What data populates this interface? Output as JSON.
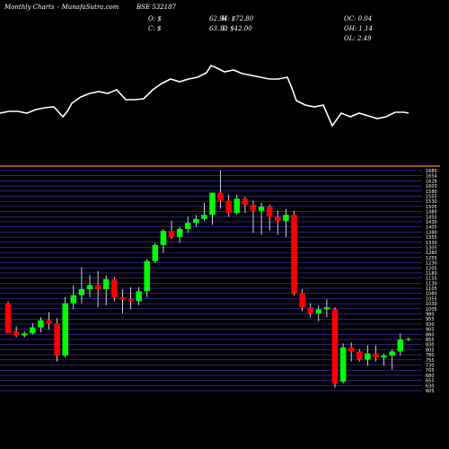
{
  "header": {
    "brand": "Monthly Charts",
    "site": "- MunafaSutra.com",
    "symbol": "BSE 532187",
    "o_label": "O: $",
    "c_label": "C: $",
    "o_value": "62.94",
    "c_value": "63.10",
    "h_label": "H: $72.80",
    "l_label": "L: $42.00",
    "oc": "OC: 0.04",
    "oh": "OH: 1.14",
    "ol": "OL: 2.49"
  },
  "colors": {
    "background": "#000000",
    "up": "#00ff00",
    "down": "#ff0000",
    "separator": "#ff8c00",
    "grid": "#4b4bff",
    "price_line": "#ffffff"
  },
  "chart_data": {
    "type": "candlestick",
    "y_tick_labels": [
      "1680",
      "1654",
      "1628",
      "1603",
      "1580",
      "1555",
      "1530",
      "1505",
      "1480",
      "1455",
      "1430",
      "1405",
      "1380",
      "1355",
      "1330",
      "1305",
      "1280",
      "1255",
      "1230",
      "1205",
      "1180",
      "1155",
      "1130",
      "1105",
      "1080",
      "1055",
      "1030",
      "1005",
      "980",
      "955",
      "930",
      "905",
      "880",
      "855",
      "830",
      "805",
      "780",
      "755",
      "730",
      "705",
      "680",
      "655",
      "630",
      "605"
    ],
    "ylim": [
      595,
      1690
    ],
    "candles": [
      {
        "o": 1030,
        "h": 1040,
        "l": 890,
        "c": 880
      },
      {
        "o": 890,
        "h": 915,
        "l": 860,
        "c": 870
      },
      {
        "o": 870,
        "h": 890,
        "l": 860,
        "c": 880
      },
      {
        "o": 880,
        "h": 930,
        "l": 875,
        "c": 910
      },
      {
        "o": 910,
        "h": 960,
        "l": 885,
        "c": 945
      },
      {
        "o": 945,
        "h": 985,
        "l": 900,
        "c": 930
      },
      {
        "o": 930,
        "h": 955,
        "l": 740,
        "c": 770
      },
      {
        "o": 770,
        "h": 1060,
        "l": 760,
        "c": 1030
      },
      {
        "o": 1030,
        "h": 1120,
        "l": 1000,
        "c": 1070
      },
      {
        "o": 1070,
        "h": 1210,
        "l": 1030,
        "c": 1100
      },
      {
        "o": 1100,
        "h": 1170,
        "l": 1060,
        "c": 1120
      },
      {
        "o": 1120,
        "h": 1190,
        "l": 1010,
        "c": 1100
      },
      {
        "o": 1100,
        "h": 1170,
        "l": 1020,
        "c": 1150
      },
      {
        "o": 1150,
        "h": 1160,
        "l": 1040,
        "c": 1060
      },
      {
        "o": 1060,
        "h": 1100,
        "l": 980,
        "c": 1050
      },
      {
        "o": 1050,
        "h": 1110,
        "l": 1000,
        "c": 1040
      },
      {
        "o": 1040,
        "h": 1110,
        "l": 1020,
        "c": 1090
      },
      {
        "o": 1090,
        "h": 1250,
        "l": 1060,
        "c": 1240
      },
      {
        "o": 1240,
        "h": 1330,
        "l": 1230,
        "c": 1320
      },
      {
        "o": 1320,
        "h": 1400,
        "l": 1280,
        "c": 1390
      },
      {
        "o": 1390,
        "h": 1440,
        "l": 1350,
        "c": 1360
      },
      {
        "o": 1360,
        "h": 1410,
        "l": 1330,
        "c": 1400
      },
      {
        "o": 1400,
        "h": 1460,
        "l": 1380,
        "c": 1430
      },
      {
        "o": 1430,
        "h": 1470,
        "l": 1410,
        "c": 1450
      },
      {
        "o": 1450,
        "h": 1530,
        "l": 1440,
        "c": 1470
      },
      {
        "o": 1470,
        "h": 1580,
        "l": 1420,
        "c": 1580
      },
      {
        "o": 1580,
        "h": 1690,
        "l": 1500,
        "c": 1540
      },
      {
        "o": 1540,
        "h": 1570,
        "l": 1460,
        "c": 1480
      },
      {
        "o": 1480,
        "h": 1570,
        "l": 1470,
        "c": 1550
      },
      {
        "o": 1550,
        "h": 1560,
        "l": 1480,
        "c": 1520
      },
      {
        "o": 1520,
        "h": 1540,
        "l": 1380,
        "c": 1490
      },
      {
        "o": 1490,
        "h": 1530,
        "l": 1370,
        "c": 1510
      },
      {
        "o": 1510,
        "h": 1520,
        "l": 1390,
        "c": 1460
      },
      {
        "o": 1460,
        "h": 1490,
        "l": 1370,
        "c": 1440
      },
      {
        "o": 1440,
        "h": 1500,
        "l": 1360,
        "c": 1470
      },
      {
        "o": 1470,
        "h": 1490,
        "l": 1070,
        "c": 1080
      },
      {
        "o": 1080,
        "h": 1100,
        "l": 990,
        "c": 1010
      },
      {
        "o": 1010,
        "h": 1030,
        "l": 960,
        "c": 980
      },
      {
        "o": 980,
        "h": 1020,
        "l": 940,
        "c": 1000
      },
      {
        "o": 1000,
        "h": 1050,
        "l": 960,
        "c": 1010
      },
      {
        "o": 1000,
        "h": 1010,
        "l": 610,
        "c": 630
      },
      {
        "o": 640,
        "h": 830,
        "l": 630,
        "c": 810
      },
      {
        "o": 810,
        "h": 835,
        "l": 740,
        "c": 790
      },
      {
        "o": 790,
        "h": 800,
        "l": 740,
        "c": 750
      },
      {
        "o": 750,
        "h": 820,
        "l": 720,
        "c": 780
      },
      {
        "o": 780,
        "h": 820,
        "l": 740,
        "c": 760
      },
      {
        "o": 760,
        "h": 780,
        "l": 720,
        "c": 770
      },
      {
        "o": 770,
        "h": 800,
        "l": 700,
        "c": 790
      },
      {
        "o": 790,
        "h": 880,
        "l": 770,
        "c": 850
      },
      {
        "o": 850,
        "h": 860,
        "l": 840,
        "c": 852
      }
    ],
    "price_line_x_from": 0,
    "price_line_values": [
      [
        0,
        126
      ],
      [
        10,
        124
      ],
      [
        20,
        124
      ],
      [
        30,
        126
      ],
      [
        40,
        122
      ],
      [
        50,
        120
      ],
      [
        60,
        119
      ],
      [
        70,
        130
      ],
      [
        75,
        124
      ],
      [
        80,
        115
      ],
      [
        90,
        108
      ],
      [
        100,
        104
      ],
      [
        110,
        102
      ],
      [
        120,
        104
      ],
      [
        130,
        100
      ],
      [
        140,
        111
      ],
      [
        150,
        111
      ],
      [
        160,
        110
      ],
      [
        170,
        100
      ],
      [
        180,
        93
      ],
      [
        190,
        88
      ],
      [
        200,
        91
      ],
      [
        210,
        88
      ],
      [
        220,
        86
      ],
      [
        230,
        81
      ],
      [
        235,
        73
      ],
      [
        240,
        75
      ],
      [
        250,
        80
      ],
      [
        260,
        78
      ],
      [
        270,
        82
      ],
      [
        280,
        84
      ],
      [
        290,
        86
      ],
      [
        300,
        88
      ],
      [
        310,
        88
      ],
      [
        320,
        86
      ],
      [
        325,
        98
      ],
      [
        330,
        112
      ],
      [
        340,
        117
      ],
      [
        350,
        119
      ],
      [
        360,
        117
      ],
      [
        370,
        140
      ],
      [
        380,
        126
      ],
      [
        390,
        130
      ],
      [
        400,
        126
      ],
      [
        410,
        129
      ],
      [
        420,
        132
      ],
      [
        430,
        130
      ],
      [
        440,
        125
      ],
      [
        450,
        125
      ],
      [
        455,
        126
      ]
    ]
  }
}
